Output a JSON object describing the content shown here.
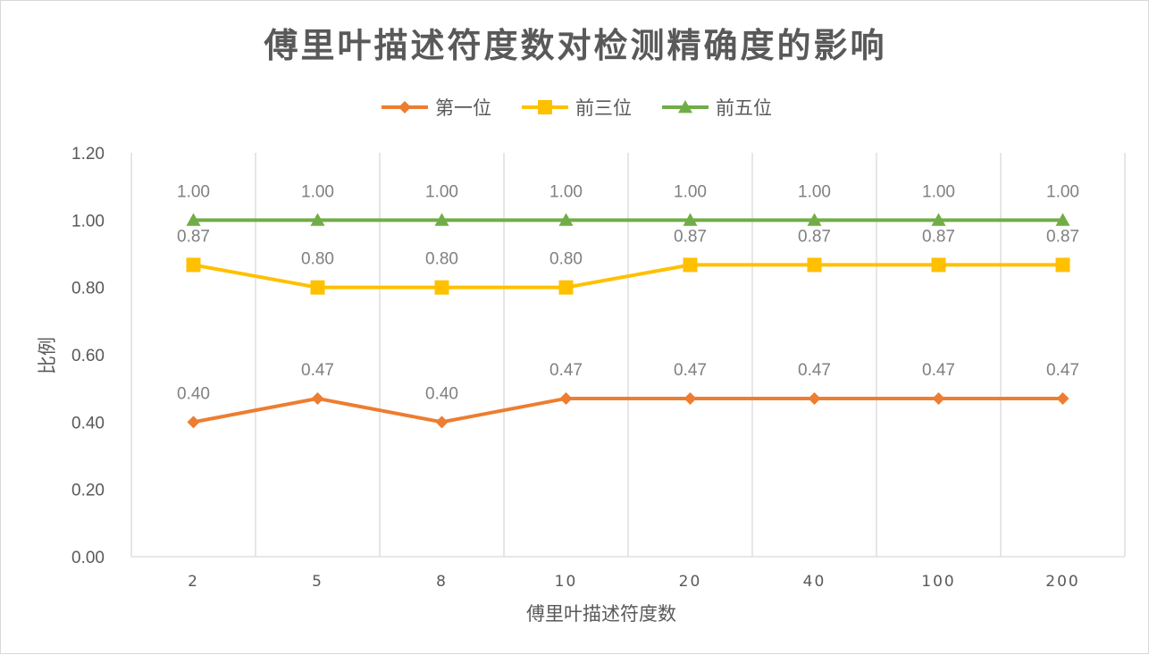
{
  "chart_data": {
    "type": "line",
    "title": "傅里叶描述符度数对检测精确度的影响",
    "xlabel": "傅里叶描述符度数",
    "ylabel": "比例",
    "categories": [
      "2",
      "5",
      "8",
      "10",
      "20",
      "40",
      "100",
      "200"
    ],
    "ylim": [
      0,
      1.2
    ],
    "yticks": [
      "0.00",
      "0.20",
      "0.40",
      "0.60",
      "0.80",
      "1.00",
      "1.20"
    ],
    "grid": "vertical",
    "legend": "top",
    "series": [
      {
        "name": "第一位",
        "color": "#ED7D31",
        "marker": "diamond",
        "values": [
          0.4,
          0.47,
          0.4,
          0.47,
          0.47,
          0.47,
          0.47,
          0.47
        ],
        "labels": [
          "0.40",
          "0.47",
          "0.40",
          "0.47",
          "0.47",
          "0.47",
          "0.47",
          "0.47"
        ]
      },
      {
        "name": "前三位",
        "color": "#FFC000",
        "marker": "square",
        "values": [
          0.867,
          0.8,
          0.8,
          0.8,
          0.867,
          0.867,
          0.867,
          0.867
        ],
        "labels": [
          "0.87",
          "0.80",
          "0.80",
          "0.80",
          "0.87",
          "0.87",
          "0.87",
          "0.87"
        ]
      },
      {
        "name": "前五位",
        "color": "#70AD47",
        "marker": "triangle",
        "values": [
          1.0,
          1.0,
          1.0,
          1.0,
          1.0,
          1.0,
          1.0,
          1.0
        ],
        "labels": [
          "1.00",
          "1.00",
          "1.00",
          "1.00",
          "1.00",
          "1.00",
          "1.00",
          "1.00"
        ]
      }
    ]
  }
}
